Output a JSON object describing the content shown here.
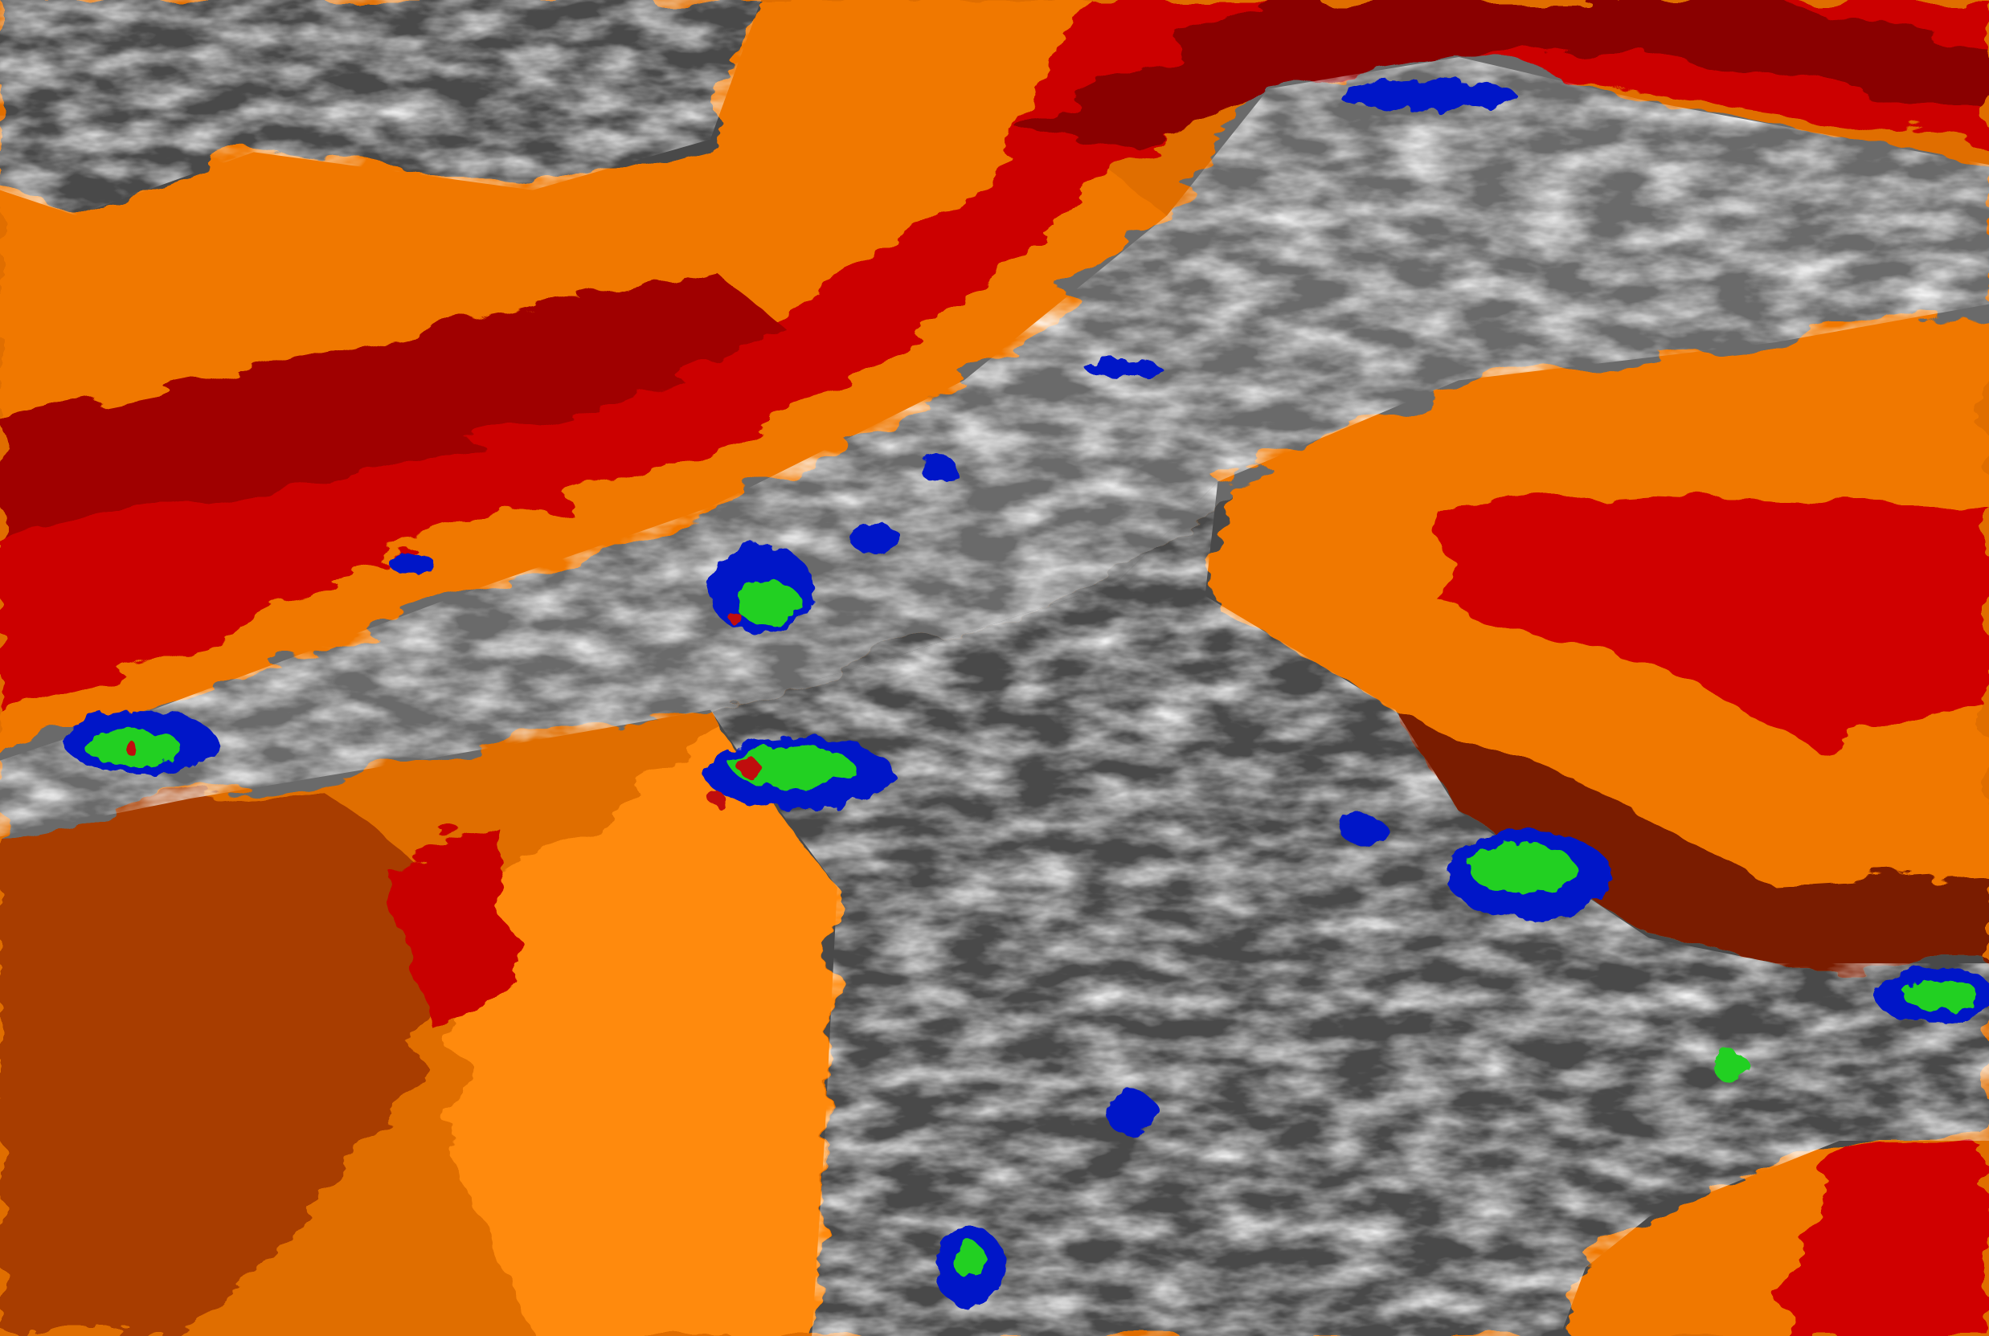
{
  "image": {
    "kind": "enhanced infrared satellite imagery",
    "palette": {
      "warm_dark": "#7a1a00",
      "orange": "#f07800",
      "orange_light": "#ff8c10",
      "red": "#d00000",
      "red_dark": "#9a0000",
      "cloud_gray_dark": "#3c3c3c",
      "cloud_gray": "#7a7a7a",
      "cloud_white": "#e8e8e8",
      "cold_light_blue": "#7fa8e0",
      "cold_blue": "#0018c8",
      "coldest_green": "#20d020",
      "extreme_red": "#c01010"
    }
  }
}
